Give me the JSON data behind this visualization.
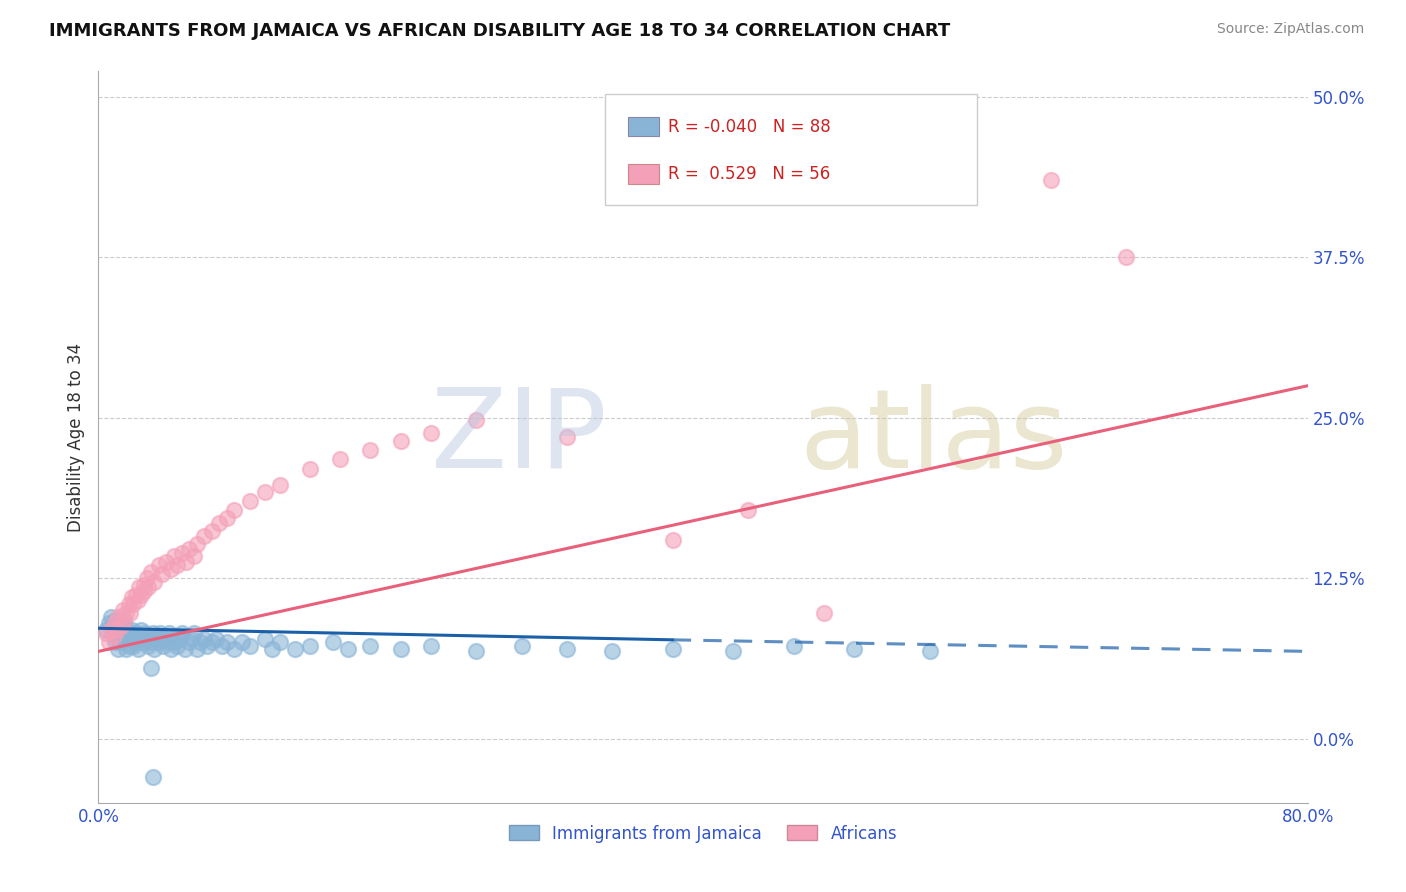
{
  "title": "IMMIGRANTS FROM JAMAICA VS AFRICAN DISABILITY AGE 18 TO 34 CORRELATION CHART",
  "source": "Source: ZipAtlas.com",
  "ylabel": "Disability Age 18 to 34",
  "xlim": [
    0.0,
    0.8
  ],
  "ylim": [
    -0.05,
    0.52
  ],
  "ytick_labels": [
    "0.0%",
    "12.5%",
    "25.0%",
    "37.5%",
    "50.0%"
  ],
  "ytick_values": [
    0.0,
    0.125,
    0.25,
    0.375,
    0.5
  ],
  "legend_labels": [
    "Immigrants from Jamaica",
    "Africans"
  ],
  "R_jamaica": -0.04,
  "N_jamaica": 88,
  "R_africans": 0.529,
  "N_africans": 56,
  "color_jamaica": "#8ab4d6",
  "color_africans": "#f4a0b8",
  "color_jamaica_line": "#1a5fa8",
  "color_africans_line": "#e8607a",
  "axis_color": "#3355cc",
  "background_color": "#ffffff",
  "grid_color": "#cccccc",
  "scatter_jamaica": {
    "x": [
      0.005,
      0.007,
      0.008,
      0.01,
      0.01,
      0.01,
      0.011,
      0.012,
      0.013,
      0.013,
      0.014,
      0.015,
      0.015,
      0.016,
      0.017,
      0.017,
      0.018,
      0.018,
      0.019,
      0.02,
      0.021,
      0.022,
      0.022,
      0.023,
      0.024,
      0.025,
      0.025,
      0.026,
      0.027,
      0.028,
      0.03,
      0.031,
      0.032,
      0.033,
      0.034,
      0.035,
      0.036,
      0.037,
      0.038,
      0.04,
      0.041,
      0.042,
      0.043,
      0.045,
      0.046,
      0.047,
      0.048,
      0.05,
      0.051,
      0.052,
      0.054,
      0.055,
      0.057,
      0.06,
      0.062,
      0.063,
      0.065,
      0.067,
      0.07,
      0.072,
      0.075,
      0.078,
      0.082,
      0.085,
      0.09,
      0.095,
      0.1,
      0.11,
      0.115,
      0.12,
      0.13,
      0.14,
      0.155,
      0.165,
      0.18,
      0.2,
      0.22,
      0.25,
      0.28,
      0.31,
      0.34,
      0.38,
      0.42,
      0.46,
      0.5,
      0.55,
      0.035,
      0.036
    ],
    "y": [
      0.085,
      0.09,
      0.095,
      0.08,
      0.085,
      0.092,
      0.075,
      0.082,
      0.07,
      0.088,
      0.075,
      0.082,
      0.09,
      0.078,
      0.085,
      0.092,
      0.07,
      0.078,
      0.085,
      0.072,
      0.08,
      0.078,
      0.085,
      0.072,
      0.08,
      0.075,
      0.082,
      0.07,
      0.078,
      0.085,
      0.075,
      0.082,
      0.078,
      0.072,
      0.08,
      0.075,
      0.082,
      0.07,
      0.078,
      0.075,
      0.082,
      0.078,
      0.072,
      0.08,
      0.075,
      0.082,
      0.07,
      0.075,
      0.08,
      0.072,
      0.078,
      0.082,
      0.07,
      0.075,
      0.078,
      0.082,
      0.07,
      0.075,
      0.078,
      0.072,
      0.075,
      0.078,
      0.072,
      0.075,
      0.07,
      0.075,
      0.072,
      0.078,
      0.07,
      0.075,
      0.07,
      0.072,
      0.075,
      0.07,
      0.072,
      0.07,
      0.072,
      0.068,
      0.072,
      0.07,
      0.068,
      0.07,
      0.068,
      0.072,
      0.07,
      0.068,
      0.055,
      -0.03
    ],
    "circle": true
  },
  "scatter_africans": {
    "x": [
      0.005,
      0.007,
      0.008,
      0.01,
      0.011,
      0.012,
      0.013,
      0.015,
      0.016,
      0.017,
      0.018,
      0.02,
      0.021,
      0.022,
      0.023,
      0.025,
      0.026,
      0.027,
      0.028,
      0.03,
      0.032,
      0.033,
      0.035,
      0.037,
      0.04,
      0.042,
      0.045,
      0.048,
      0.05,
      0.052,
      0.055,
      0.058,
      0.06,
      0.063,
      0.065,
      0.07,
      0.075,
      0.08,
      0.085,
      0.09,
      0.1,
      0.11,
      0.12,
      0.14,
      0.16,
      0.18,
      0.2,
      0.22,
      0.25,
      0.03,
      0.31,
      0.38,
      0.43,
      0.48,
      0.63,
      0.68
    ],
    "y": [
      0.082,
      0.075,
      0.085,
      0.08,
      0.09,
      0.085,
      0.095,
      0.088,
      0.1,
      0.092,
      0.098,
      0.105,
      0.098,
      0.11,
      0.105,
      0.112,
      0.108,
      0.118,
      0.112,
      0.12,
      0.125,
      0.118,
      0.13,
      0.122,
      0.135,
      0.128,
      0.138,
      0.132,
      0.142,
      0.135,
      0.145,
      0.138,
      0.148,
      0.142,
      0.152,
      0.158,
      0.162,
      0.168,
      0.172,
      0.178,
      0.185,
      0.192,
      0.198,
      0.21,
      0.218,
      0.225,
      0.232,
      0.238,
      0.248,
      0.115,
      0.235,
      0.155,
      0.178,
      0.098,
      0.435,
      0.375
    ],
    "circle": true
  },
  "trend_jamaica_solid": {
    "x_start": 0.0,
    "x_end": 0.38,
    "y_start": 0.086,
    "y_end": 0.077
  },
  "trend_jamaica_dash": {
    "x_start": 0.38,
    "x_end": 0.8,
    "y_start": 0.077,
    "y_end": 0.068
  },
  "trend_africans": {
    "x_start": 0.0,
    "x_end": 0.8,
    "y_start": 0.068,
    "y_end": 0.275
  }
}
